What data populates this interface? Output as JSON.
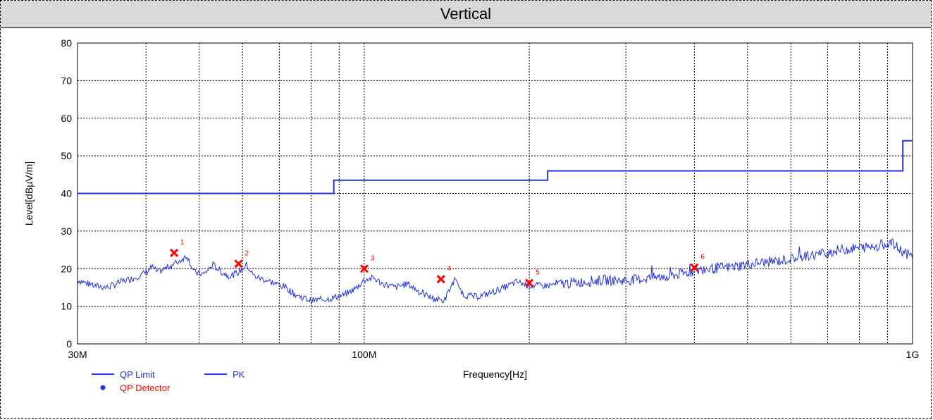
{
  "header": {
    "title": "Vertical"
  },
  "chart_data": {
    "type": "line",
    "title": "Vertical",
    "xlabel": "Frequency[Hz]",
    "ylabel": "Level[dBµV/m]",
    "x_scale": "log",
    "xlim": [
      30000000,
      1000000000
    ],
    "ylim": [
      0,
      80
    ],
    "grid": true,
    "x_ticks": [
      {
        "value": 30000000,
        "label": "30M"
      },
      {
        "value": 100000000,
        "label": "100M"
      },
      {
        "value": 1000000000,
        "label": "1G"
      }
    ],
    "y_ticks": [
      0,
      10,
      20,
      30,
      40,
      50,
      60,
      70,
      80
    ],
    "legend": {
      "placement": "bottom-left",
      "items": [
        {
          "label": "QP Limit",
          "kind": "line",
          "color": "#2233dd"
        },
        {
          "label": "PK",
          "kind": "line",
          "color": "#2233dd"
        },
        {
          "label": "QP Detector",
          "kind": "dot",
          "color": "#2233dd"
        }
      ]
    },
    "series": [
      {
        "name": "QP Limit",
        "color": "#2233dd",
        "x": [
          30000000,
          88000000,
          88000000,
          216000000,
          216000000,
          960000000,
          960000000,
          1000000000
        ],
        "y": [
          40,
          40,
          43.5,
          43.5,
          46,
          46,
          54,
          54
        ]
      },
      {
        "name": "PK",
        "color": "#2233dd",
        "x": [
          30000000,
          32000000,
          34000000,
          36000000,
          38000000,
          40000000,
          41000000,
          42000000,
          44000000,
          46000000,
          47500000,
          49000000,
          51000000,
          53000000,
          55000000,
          57000000,
          59000000,
          61000000,
          63000000,
          66000000,
          69000000,
          72000000,
          75000000,
          80000000,
          86000000,
          92000000,
          97000000,
          100000000,
          104000000,
          108000000,
          114000000,
          120000000,
          127000000,
          134000000,
          140000000,
          146000000,
          152000000,
          160000000,
          170000000,
          180000000,
          190000000,
          200000000,
          215000000,
          230000000,
          250000000,
          275000000,
          300000000,
          330000000,
          360000000,
          390000000,
          400000000,
          430000000,
          470000000,
          520000000,
          570000000,
          620000000,
          680000000,
          740000000,
          800000000,
          860000000,
          910000000,
          950000000,
          1000000000
        ],
        "y": [
          17,
          15.5,
          15,
          16.5,
          17.5,
          19,
          20.5,
          19,
          20.5,
          22,
          23.5,
          19,
          18.5,
          21,
          19,
          18,
          19,
          21,
          18,
          17,
          16,
          15,
          13,
          11.5,
          12,
          13,
          15,
          17,
          17.5,
          16,
          15,
          16,
          13.5,
          12,
          11.5,
          17,
          13,
          12.5,
          13.5,
          15,
          16.5,
          15.5,
          15.5,
          16,
          16.5,
          17,
          16.8,
          17.5,
          18,
          19,
          19.5,
          20,
          20.5,
          21.5,
          22,
          23,
          24,
          25,
          25.5,
          26,
          27,
          25,
          23
        ]
      }
    ],
    "markers": [
      {
        "id": "1",
        "x": 45000000,
        "y": 24.2
      },
      {
        "id": "2",
        "x": 59000000,
        "y": 21.3
      },
      {
        "id": "3",
        "x": 100000000,
        "y": 20
      },
      {
        "id": "4",
        "x": 138000000,
        "y": 17.2
      },
      {
        "id": "5",
        "x": 200000000,
        "y": 16.2
      },
      {
        "id": "6",
        "x": 400000000,
        "y": 20.3
      }
    ],
    "marker_color": "#ff0000"
  }
}
